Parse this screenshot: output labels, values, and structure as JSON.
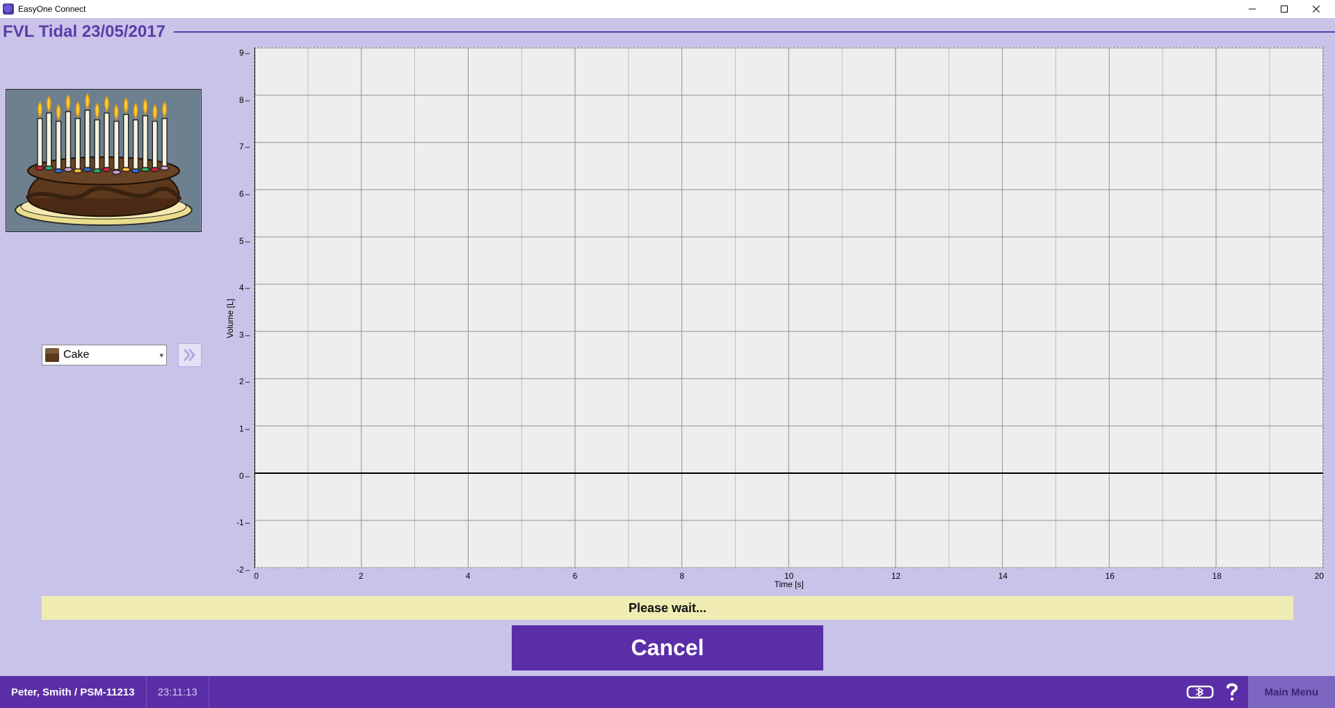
{
  "app": {
    "title": "EasyOne Connect"
  },
  "header": {
    "title": "FVL Tidal  23/05/2017"
  },
  "incentive": {
    "selected": "Cake"
  },
  "status": {
    "message": "Please wait..."
  },
  "buttons": {
    "cancel": "Cancel",
    "mainMenu": "Main Menu"
  },
  "patient": {
    "line": "Peter, Smith / PSM-11213"
  },
  "clock": {
    "time": "23:11:13"
  },
  "chart": {
    "type": "line",
    "xlabel": "Time [s]",
    "ylabel": "Volume [L]",
    "xlim": [
      0,
      20
    ],
    "ylim": [
      -2,
      9
    ],
    "xtick_step": 2,
    "ytick_step": 1,
    "background_color": "#eeeeee",
    "grid_color": "#bfbfbf",
    "grid_major_color": "#8f8f8f",
    "axis_color": "#000000",
    "series": [],
    "label_fontsize": 12,
    "minor_x_subdiv": 2,
    "minor_y_subdiv": 1
  }
}
